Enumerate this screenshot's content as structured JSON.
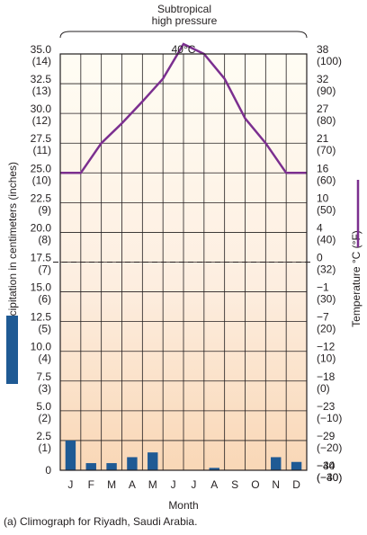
{
  "chart_data": {
    "type": "bar+line",
    "title": "",
    "bracket_label": [
      "Subtropical",
      "high pressure"
    ],
    "categories": [
      "J",
      "F",
      "M",
      "A",
      "M",
      "J",
      "J",
      "A",
      "S",
      "O",
      "N",
      "D"
    ],
    "xlabel": "Month",
    "precipitation": {
      "axis_label": "Precipitation in centimeters (inches)",
      "ylim": [
        0,
        35
      ],
      "ticks": [
        {
          "value": 0,
          "label": "0",
          "sub": ""
        },
        {
          "value": 2.5,
          "label": "2.5",
          "sub": "(1)"
        },
        {
          "value": 5.0,
          "label": "5.0",
          "sub": "(2)"
        },
        {
          "value": 7.5,
          "label": "7.5",
          "sub": "(3)"
        },
        {
          "value": 10.0,
          "label": "10.0",
          "sub": "(4)"
        },
        {
          "value": 12.5,
          "label": "12.5",
          "sub": "(5)"
        },
        {
          "value": 15.0,
          "label": "15.0",
          "sub": "(6)"
        },
        {
          "value": 17.5,
          "label": "17.5",
          "sub": "(7)"
        },
        {
          "value": 20.0,
          "label": "20.0",
          "sub": "(8)"
        },
        {
          "value": 22.5,
          "label": "22.5",
          "sub": "(9)"
        },
        {
          "value": 25.0,
          "label": "25.0",
          "sub": "(10)"
        },
        {
          "value": 27.5,
          "label": "27.5",
          "sub": "(11)"
        },
        {
          "value": 30.0,
          "label": "30.0",
          "sub": "(12)"
        },
        {
          "value": 32.5,
          "label": "32.5",
          "sub": "(13)"
        },
        {
          "value": 35.0,
          "label": "35.0",
          "sub": "(14)"
        }
      ],
      "values": [
        2.5,
        0.6,
        0.6,
        1.1,
        1.5,
        0,
        0,
        0.2,
        0,
        0,
        1.1,
        0.7
      ],
      "color": "#1f5a94"
    },
    "temperature": {
      "axis_label": "Temperature °C (°F)",
      "peak_label": "40°C",
      "ticks": [
        {
          "label": "38",
          "sub": "(100)"
        },
        {
          "label": "32",
          "sub": "(90)"
        },
        {
          "label": "27",
          "sub": "(80)"
        },
        {
          "label": "21",
          "sub": "(70)"
        },
        {
          "label": "16",
          "sub": "(60)"
        },
        {
          "label": "10",
          "sub": "(50)"
        },
        {
          "label": "4",
          "sub": "(40)"
        },
        {
          "label": "0",
          "sub": "(32)"
        },
        {
          "label": "−1",
          "sub": "(30)"
        },
        {
          "label": "−7",
          "sub": "(20)"
        },
        {
          "label": "−12",
          "sub": "(10)"
        },
        {
          "label": "−18",
          "sub": "(0)"
        },
        {
          "label": "−23",
          "sub": "(−10)"
        },
        {
          "label": "−29",
          "sub": "(−20)"
        },
        {
          "label": "−34",
          "sub": "(−30)"
        },
        {
          "label": "−40",
          "sub": "(−40)"
        }
      ],
      "freezing_line_c": 0,
      "values_c": [
        16,
        16,
        21,
        25,
        29,
        33,
        40,
        38,
        33,
        26,
        21,
        16
      ],
      "color": "#7b2f8f"
    }
  },
  "caption": "(a) Climograph for Riyadh, Saudi Arabia."
}
